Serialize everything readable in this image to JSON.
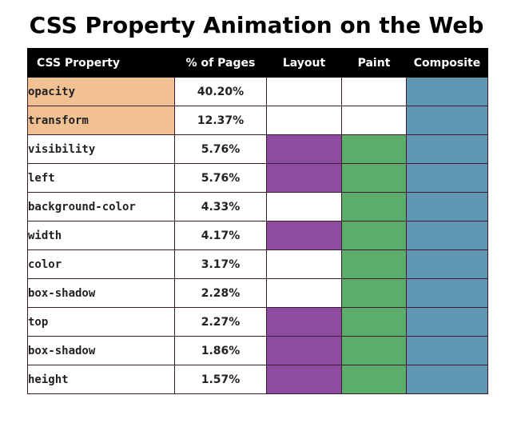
{
  "chart_data": {
    "type": "table",
    "title": "CSS Property Animation on the Web",
    "columns": [
      "CSS Property",
      "% of Pages",
      "Layout",
      "Paint",
      "Composite"
    ],
    "rows": [
      {
        "property": "opacity",
        "pct": "40.20%",
        "layout": false,
        "paint": false,
        "composite": true,
        "highlight": true
      },
      {
        "property": "transform",
        "pct": "12.37%",
        "layout": false,
        "paint": false,
        "composite": true,
        "highlight": true
      },
      {
        "property": "visibility",
        "pct": "5.76%",
        "layout": true,
        "paint": true,
        "composite": true,
        "highlight": false
      },
      {
        "property": "left",
        "pct": "5.76%",
        "layout": true,
        "paint": true,
        "composite": true,
        "highlight": false
      },
      {
        "property": "background-color",
        "pct": "4.33%",
        "layout": false,
        "paint": true,
        "composite": true,
        "highlight": false
      },
      {
        "property": "width",
        "pct": "4.17%",
        "layout": true,
        "paint": true,
        "composite": true,
        "highlight": false
      },
      {
        "property": "color",
        "pct": "3.17%",
        "layout": false,
        "paint": true,
        "composite": true,
        "highlight": false
      },
      {
        "property": "box-shadow",
        "pct": "2.28%",
        "layout": false,
        "paint": true,
        "composite": true,
        "highlight": false
      },
      {
        "property": "top",
        "pct": "2.27%",
        "layout": true,
        "paint": true,
        "composite": true,
        "highlight": false
      },
      {
        "property": "box-shadow",
        "pct": "1.86%",
        "layout": true,
        "paint": true,
        "composite": true,
        "highlight": false
      },
      {
        "property": "height",
        "pct": "1.57%",
        "layout": true,
        "paint": true,
        "composite": true,
        "highlight": false
      }
    ]
  },
  "colors": {
    "layout": "#8e4ca1",
    "paint": "#5cac6a",
    "composite": "#5f96b2",
    "highlight": "#f2c193",
    "header_bg": "#000000",
    "grid_line": "#3a1c2a"
  }
}
